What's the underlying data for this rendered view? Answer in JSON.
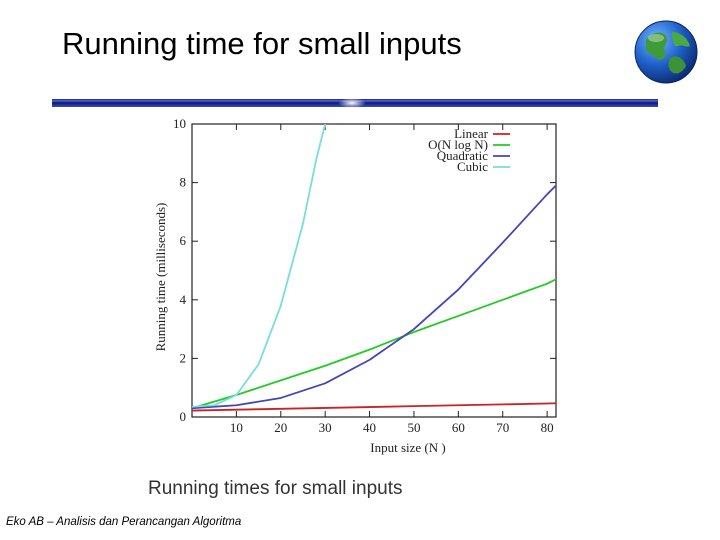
{
  "slide": {
    "title": "Running time for small inputs",
    "footer": "Eko AB – Analisis dan Perancangan Algoritma"
  },
  "decorations": {
    "globe": "globe-icon",
    "rule_color": "#1a2a9a",
    "rule_glow": "#ffffff"
  },
  "chart_data": {
    "type": "line",
    "caption": "Running times for small inputs",
    "xlabel": "Input size (N )",
    "ylabel": "Running time (milliseconds)",
    "xlim": [
      0,
      82
    ],
    "ylim": [
      0,
      10
    ],
    "xticks": [
      "10",
      "20",
      "30",
      "40",
      "50",
      "60",
      "70",
      "80"
    ],
    "yticks": [
      "0",
      "2",
      "4",
      "6",
      "8",
      "10"
    ],
    "grid": false,
    "legend_position": "top-right",
    "series": [
      {
        "name": "Linear",
        "color": "#cc2222",
        "x": [
          0,
          10,
          20,
          30,
          40,
          50,
          60,
          70,
          80,
          82
        ],
        "y": [
          0.22,
          0.25,
          0.28,
          0.31,
          0.34,
          0.37,
          0.4,
          0.43,
          0.46,
          0.47
        ]
      },
      {
        "name": "O(N log N)",
        "color": "#22cc22",
        "x": [
          0,
          10,
          20,
          30,
          40,
          50,
          60,
          70,
          80,
          82
        ],
        "y": [
          0.3,
          0.75,
          1.25,
          1.75,
          2.3,
          2.9,
          3.45,
          4.0,
          4.55,
          4.7
        ]
      },
      {
        "name": "Quadratic",
        "color": "#4444bb",
        "x": [
          0,
          10,
          20,
          30,
          40,
          50,
          60,
          70,
          80,
          82
        ],
        "y": [
          0.3,
          0.4,
          0.65,
          1.15,
          1.95,
          3.0,
          4.35,
          5.95,
          7.6,
          7.9
        ]
      },
      {
        "name": "Cubic",
        "color": "#77dddd",
        "x": [
          0,
          5,
          10,
          15,
          20,
          25,
          28,
          30
        ],
        "y": [
          0.35,
          0.4,
          0.75,
          1.8,
          3.8,
          6.6,
          8.8,
          10.0
        ]
      }
    ]
  }
}
